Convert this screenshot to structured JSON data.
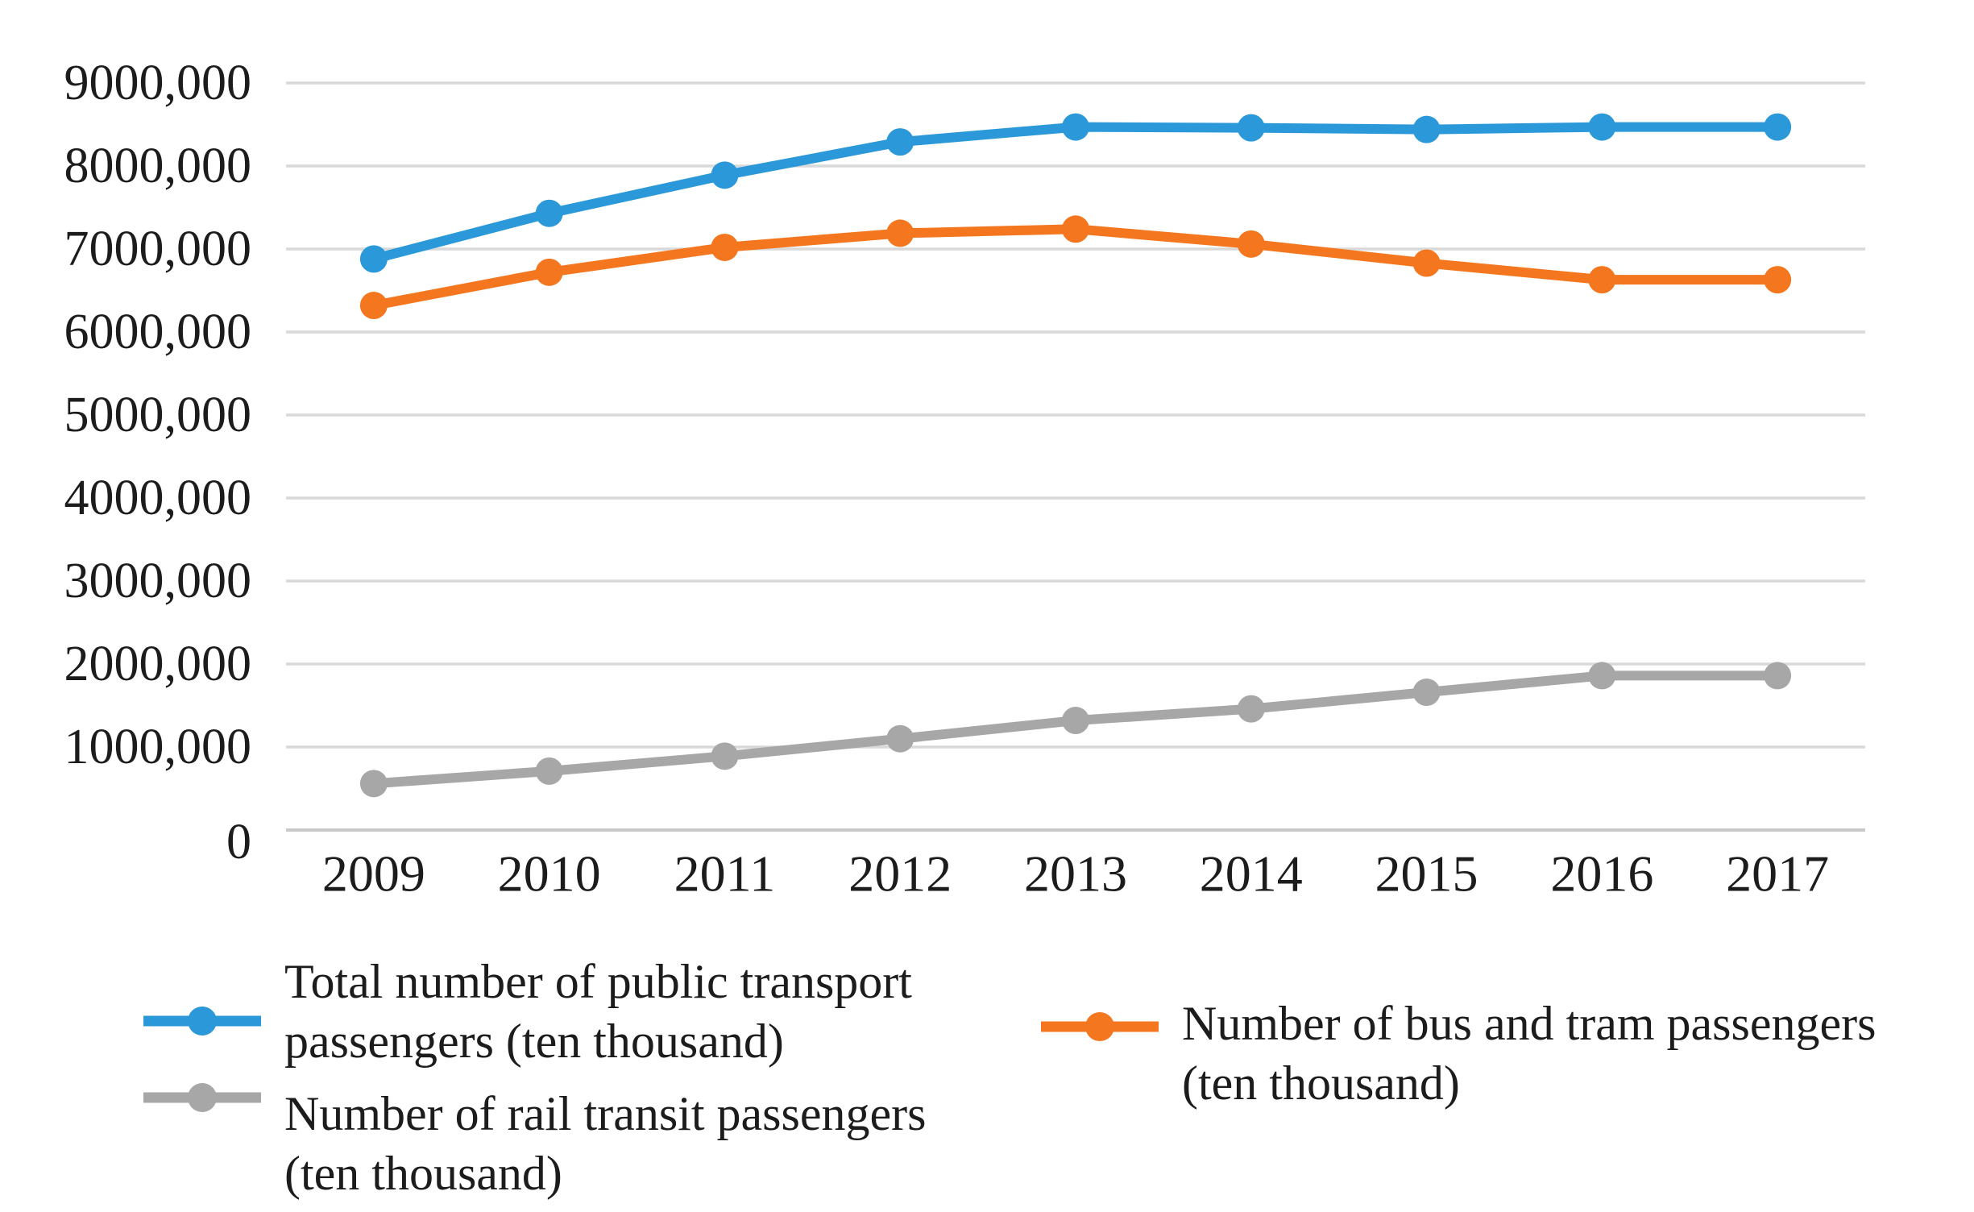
{
  "chart_data": {
    "type": "line",
    "title": "",
    "xlabel": "",
    "ylabel": "",
    "grid": true,
    "legend_position": "bottom",
    "categories": [
      "2009",
      "2010",
      "2011",
      "2012",
      "2013",
      "2014",
      "2015",
      "2016",
      "2017"
    ],
    "y_axis": {
      "min": 0,
      "max": 9000000,
      "step": 1000000,
      "tick_labels": [
        "0",
        "1000,000",
        "2000,000",
        "3000,000",
        "4000,000",
        "5000,000",
        "6000,000",
        "7000,000",
        "8000,000",
        "9000,000"
      ]
    },
    "series": [
      {
        "key": "total",
        "name": "Total number of public transport passengers (ten thousand)",
        "color": "#2b99d9",
        "values": [
          6880000,
          7430000,
          7890000,
          8290000,
          8470000,
          8460000,
          8440000,
          8470000,
          8470000
        ]
      },
      {
        "key": "bus_tram",
        "name": "Number of bus and tram passengers (ten thousand)",
        "color": "#f4771f",
        "values": [
          6320000,
          6720000,
          7020000,
          7190000,
          7240000,
          7060000,
          6830000,
          6630000,
          6630000
        ]
      },
      {
        "key": "rail",
        "name": "Number of rail transit passengers (ten thousand)",
        "color": "#a7a7a7",
        "values": [
          560000,
          710000,
          890000,
          1100000,
          1320000,
          1460000,
          1660000,
          1860000,
          1860000
        ]
      }
    ]
  },
  "legend": {
    "items": [
      {
        "key": "total",
        "line1": "Total number of public transport",
        "line2": "passengers (ten thousand)"
      },
      {
        "key": "bus_tram",
        "line1": "Number of bus and tram passengers",
        "line2": "(ten thousand)"
      },
      {
        "key": "rail",
        "line1": "Number of rail transit passengers",
        "line2": "(ten thousand)"
      }
    ]
  },
  "colors": {
    "grid_line": "#d9d9d9",
    "zero_line": "#c9c9c9",
    "text": "#1c1c1c",
    "background": "#ffffff"
  }
}
